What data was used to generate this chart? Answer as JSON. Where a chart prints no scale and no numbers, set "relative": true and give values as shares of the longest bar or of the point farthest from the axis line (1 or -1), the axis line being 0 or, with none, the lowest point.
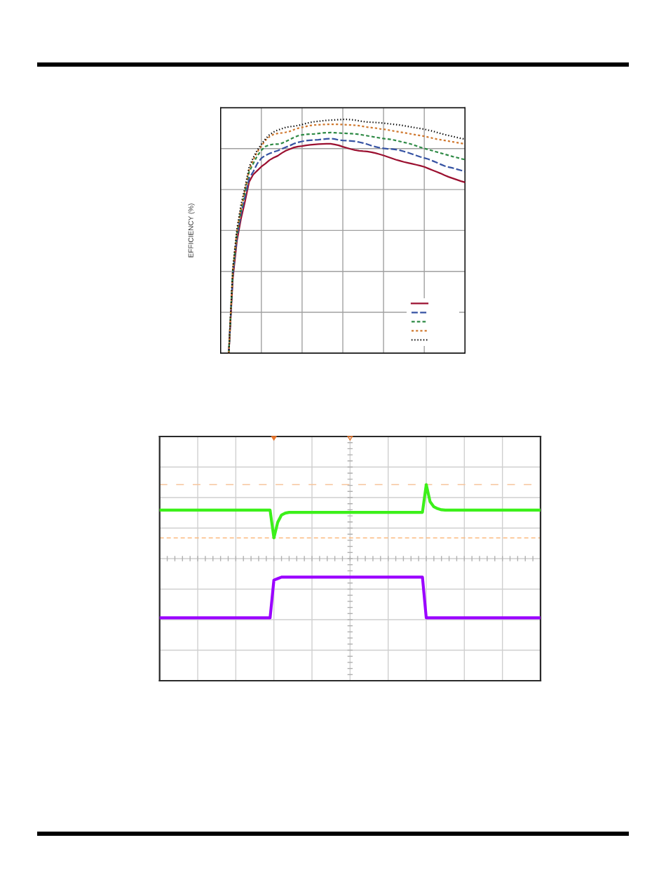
{
  "chart_data": [
    {
      "type": "line",
      "ylabel": "EFFICIENCY (%)",
      "relative": true,
      "grid": true,
      "categories": [
        null,
        null,
        null,
        null,
        null,
        null,
        null,
        null,
        null,
        null,
        null,
        null,
        null,
        null,
        null,
        null,
        null,
        null,
        null,
        null,
        null,
        null,
        null,
        null,
        null,
        null,
        null,
        null,
        null,
        null,
        null,
        null,
        null,
        null,
        null,
        null,
        null,
        null,
        null,
        null,
        null,
        null,
        null,
        null,
        null,
        null,
        null,
        null,
        null,
        null,
        null,
        null,
        null,
        null,
        null,
        null,
        null,
        null,
        null,
        null,
        null
      ],
      "series": [
        {
          "color": "#9b1030",
          "line_style": "solid",
          "values": [
            null,
            null,
            0,
            0.32,
            0.48,
            0.575,
            0.65,
            0.733,
            0.764,
            0.781,
            0.798,
            0.811,
            0.826,
            0.836,
            0.844,
            0.856,
            0.866,
            0.873,
            0.88,
            0.884,
            0.886,
            0.889,
            0.891,
            0.893,
            0.894,
            0.895,
            0.896,
            0.896,
            0.893,
            0.889,
            0.883,
            0.878,
            0.873,
            0.869,
            0.866,
            0.864,
            0.863,
            0.86,
            0.856,
            0.851,
            0.846,
            0.84,
            0.834,
            0.828,
            0.823,
            0.818,
            0.814,
            0.81,
            0.806,
            0.802,
            0.797,
            0.79,
            0.783,
            0.776,
            0.769,
            0.761,
            0.754,
            0.748,
            0.742,
            0.736,
            0.731
          ]
        },
        {
          "color": "#3653a3",
          "line_style": "dashed",
          "values": [
            null,
            null,
            0,
            0.335,
            0.495,
            0.595,
            0.67,
            0.748,
            0.776,
            0.811,
            0.834,
            0.846,
            0.854,
            0.861,
            0.866,
            0.874,
            0.881,
            0.888,
            0.896,
            0.902,
            0.906,
            0.909,
            0.911,
            0.912,
            0.913,
            0.915,
            0.917,
            0.918,
            0.916,
            0.912,
            0.91,
            0.909,
            0.908,
            0.906,
            0.903,
            0.899,
            0.894,
            0.888,
            0.883,
            0.879,
            0.876,
            0.874,
            0.873,
            0.871,
            0.868,
            0.863,
            0.858,
            0.852,
            0.846,
            0.84,
            0.835,
            0.83,
            0.823,
            0.816,
            0.808,
            0.801,
            0.796,
            0.792,
            0.787,
            0.782,
            0.777
          ]
        },
        {
          "color": "#2e8a45",
          "line_style": "dashed",
          "values": [
            null,
            null,
            0,
            0.35,
            0.51,
            0.61,
            0.69,
            0.776,
            0.811,
            0.844,
            0.868,
            0.884,
            0.891,
            0.894,
            0.894,
            0.898,
            0.906,
            0.914,
            0.923,
            0.93,
            0.934,
            0.936,
            0.937,
            0.938,
            0.94,
            0.942,
            0.943,
            0.944,
            0.943,
            0.942,
            0.941,
            0.94,
            0.939,
            0.938,
            0.936,
            0.933,
            0.93,
            0.927,
            0.924,
            0.921,
            0.918,
            0.916,
            0.914,
            0.91,
            0.906,
            0.902,
            0.898,
            0.893,
            0.887,
            0.881,
            0.876,
            0.871,
            0.866,
            0.861,
            0.856,
            0.851,
            0.846,
            0.841,
            0.837,
            0.832,
            0.828
          ]
        },
        {
          "color": "#d0782e",
          "line_style": "dashed",
          "values": [
            null,
            null,
            0,
            0.355,
            0.52,
            0.62,
            0.7,
            0.786,
            0.826,
            0.861,
            0.886,
            0.911,
            0.926,
            0.936,
            0.94,
            0.942,
            0.945,
            0.949,
            0.956,
            0.962,
            0.966,
            0.97,
            0.974,
            0.976,
            0.977,
            0.978,
            0.979,
            0.979,
            0.979,
            0.979,
            0.978,
            0.977,
            0.976,
            0.975,
            0.973,
            0.97,
            0.967,
            0.965,
            0.963,
            0.96,
            0.958,
            0.955,
            0.952,
            0.949,
            0.946,
            0.943,
            0.94,
            0.937,
            0.934,
            0.931,
            0.928,
            0.924,
            0.92,
            0.916,
            0.913,
            0.91,
            0.907,
            0.904,
            0.901,
            0.898,
            0.895
          ]
        },
        {
          "color": "#000000",
          "line_style": "dotted",
          "values": [
            null,
            null,
            0,
            0.365,
            0.53,
            0.635,
            0.71,
            0.796,
            0.836,
            0.868,
            0.894,
            0.916,
            0.934,
            0.946,
            0.954,
            0.96,
            0.966,
            0.969,
            0.971,
            0.974,
            0.978,
            0.983,
            0.987,
            0.99,
            0.992,
            0.994,
            0.996,
            0.997,
            0.998,
            0.999,
            1.0,
            1.0,
            0.999,
            0.997,
            0.994,
            0.991,
            0.989,
            0.988,
            0.987,
            0.986,
            0.984,
            0.982,
            0.98,
            0.978,
            0.976,
            0.973,
            0.97,
            0.967,
            0.964,
            0.961,
            0.958,
            0.954,
            0.95,
            0.945,
            0.94,
            0.935,
            0.931,
            0.927,
            0.923,
            0.919,
            0.916
          ]
        }
      ]
    },
    {
      "type": "line",
      "relative": true,
      "grid": true,
      "categories": [
        null,
        null,
        null,
        null,
        null,
        null,
        null,
        null,
        null,
        null,
        null,
        null,
        null,
        null,
        null,
        null,
        null,
        null,
        null,
        null,
        null,
        null,
        null,
        null,
        null,
        null,
        null,
        null,
        null,
        null,
        null,
        null,
        null,
        null,
        null,
        null,
        null,
        null,
        null,
        null,
        null,
        null,
        null,
        null,
        null,
        null,
        null,
        null,
        null,
        null,
        null,
        null,
        null,
        null,
        null,
        null,
        null,
        null,
        null,
        null,
        null,
        null,
        null,
        null,
        null,
        null,
        null,
        null,
        null,
        null,
        null,
        null,
        null,
        null,
        null,
        null,
        null,
        null,
        null,
        null,
        null,
        null,
        null,
        null,
        null,
        null,
        null,
        null,
        null,
        null,
        null,
        null,
        null,
        null,
        null,
        null,
        null,
        null,
        null,
        null,
        null
      ],
      "series": [
        {
          "color": "#3cf01a",
          "values": [
            0.655,
            0.655,
            0.655,
            0.655,
            0.655,
            0.655,
            0.655,
            0.655,
            0.655,
            0.655,
            0.655,
            0.655,
            0.655,
            0.655,
            0.655,
            0.655,
            0.655,
            0.655,
            0.655,
            0.655,
            0.655,
            0.655,
            0.655,
            0.655,
            0.655,
            0.655,
            0.655,
            0.655,
            0.655,
            0.655,
            0.28,
            0.49,
            0.59,
            0.615,
            0.625,
            0.625,
            0.625,
            0.625,
            0.625,
            0.625,
            0.625,
            0.625,
            0.625,
            0.625,
            0.625,
            0.625,
            0.625,
            0.625,
            0.625,
            0.625,
            0.625,
            0.625,
            0.625,
            0.625,
            0.625,
            0.625,
            0.625,
            0.625,
            0.625,
            0.625,
            0.625,
            0.625,
            0.625,
            0.625,
            0.625,
            0.625,
            0.625,
            0.625,
            0.625,
            0.625,
            1.0,
            0.77,
            0.7,
            0.675,
            0.66,
            0.655,
            0.655,
            0.655,
            0.655,
            0.655,
            0.655,
            0.655,
            0.655,
            0.655,
            0.655,
            0.655,
            0.655,
            0.655,
            0.655,
            0.655,
            0.655,
            0.655,
            0.655,
            0.655,
            0.655,
            0.655,
            0.655,
            0.655,
            0.655,
            0.655,
            0.655
          ]
        },
        {
          "color": "#9a00ff",
          "values": [
            -0.8,
            -0.8,
            -0.8,
            -0.8,
            -0.8,
            -0.8,
            -0.8,
            -0.8,
            -0.8,
            -0.8,
            -0.8,
            -0.8,
            -0.8,
            -0.8,
            -0.8,
            -0.8,
            -0.8,
            -0.8,
            -0.8,
            -0.8,
            -0.8,
            -0.8,
            -0.8,
            -0.8,
            -0.8,
            -0.8,
            -0.8,
            -0.8,
            -0.8,
            -0.8,
            -0.29,
            -0.27,
            -0.25,
            -0.25,
            -0.25,
            -0.25,
            -0.25,
            -0.25,
            -0.25,
            -0.25,
            -0.25,
            -0.25,
            -0.25,
            -0.25,
            -0.25,
            -0.25,
            -0.25,
            -0.25,
            -0.25,
            -0.25,
            -0.25,
            -0.25,
            -0.25,
            -0.25,
            -0.25,
            -0.25,
            -0.25,
            -0.25,
            -0.25,
            -0.25,
            -0.25,
            -0.25,
            -0.25,
            -0.25,
            -0.25,
            -0.25,
            -0.25,
            -0.25,
            -0.25,
            -0.25,
            -0.8,
            -0.8,
            -0.8,
            -0.8,
            -0.8,
            -0.8,
            -0.8,
            -0.8,
            -0.8,
            -0.8,
            -0.8,
            -0.8,
            -0.8,
            -0.8,
            -0.8,
            -0.8,
            -0.8,
            -0.8,
            -0.8,
            -0.8,
            -0.8,
            -0.8,
            -0.8,
            -0.8,
            -0.8,
            -0.8,
            -0.8,
            -0.8,
            -0.8,
            -0.8,
            -0.8
          ]
        }
      ],
      "ref_lines": [
        {
          "axis": "y",
          "value": 1.0,
          "color": "#f6c49a",
          "line_style": "dashed"
        },
        {
          "axis": "y",
          "value": 0.28,
          "color": "#fbb97e",
          "line_style": "dashed"
        }
      ]
    }
  ]
}
